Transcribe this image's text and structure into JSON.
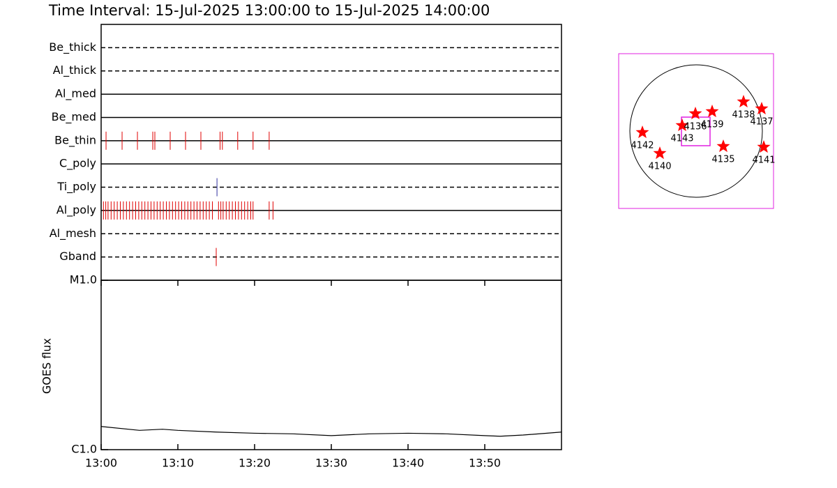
{
  "chart_data": [
    {
      "type": "timeline",
      "title": "Time Interval: 15-Jul-2025 13:00:00 to 15-Jul-2025 14:00:00",
      "xlim": [
        0,
        60
      ],
      "color": "#e00000",
      "categories": [
        {
          "name": "Be_thick",
          "line": "dashed",
          "times": []
        },
        {
          "name": "Al_thick",
          "line": "dashed",
          "times": []
        },
        {
          "name": "Al_med",
          "line": "solid",
          "times": []
        },
        {
          "name": "Be_med",
          "line": "solid",
          "times": []
        },
        {
          "name": "Be_thin",
          "line": "solid",
          "times": [
            0.64,
            2.73,
            4.73,
            6.73,
            7.0,
            9.0,
            11.0,
            13.0,
            15.5,
            15.8,
            17.8,
            19.8,
            21.9
          ]
        },
        {
          "name": "C_poly",
          "line": "solid",
          "times": []
        },
        {
          "name": "Ti_poly",
          "line": "dashed",
          "color": "#3030a0",
          "times": [
            15.1
          ]
        },
        {
          "name": "Al_poly",
          "line": "solid",
          "times": [
            0.3,
            0.6,
            0.9,
            1.3,
            1.7,
            2.1,
            2.5,
            2.9,
            3.3,
            3.7,
            4.1,
            4.5,
            4.9,
            5.3,
            5.7,
            6.1,
            6.5,
            6.9,
            7.3,
            7.7,
            8.1,
            8.5,
            8.9,
            9.3,
            9.7,
            10.1,
            10.5,
            10.9,
            11.3,
            11.7,
            12.1,
            12.5,
            12.9,
            13.3,
            13.7,
            14.1,
            14.5,
            15.3,
            15.6,
            15.9,
            16.3,
            16.7,
            17.1,
            17.5,
            17.9,
            18.3,
            18.7,
            19.1,
            19.5,
            19.8,
            21.9,
            22.4
          ]
        },
        {
          "name": "Al_mesh",
          "line": "dashed",
          "times": []
        },
        {
          "name": "Gband",
          "line": "dashed",
          "times": [
            15.0
          ]
        }
      ]
    },
    {
      "type": "line",
      "ylabel": "GOES flux",
      "log_y": true,
      "color": "#000000",
      "x": [
        0,
        5,
        8,
        10,
        15,
        20,
        25,
        30,
        35,
        40,
        45,
        50,
        52,
        55,
        60
      ],
      "values": [
        1.37e-06,
        1.3e-06,
        1.32e-06,
        1.3e-06,
        1.27e-06,
        1.25e-06,
        1.24e-06,
        1.21e-06,
        1.24e-06,
        1.25e-06,
        1.24e-06,
        1.21e-06,
        1.2e-06,
        1.22e-06,
        1.27e-06
      ],
      "xlim": [
        0,
        60
      ],
      "xticks": [
        {
          "value": 0,
          "label": "13:00"
        },
        {
          "value": 10,
          "label": "13:10"
        },
        {
          "value": 20,
          "label": "13:20"
        },
        {
          "value": 30,
          "label": "13:30"
        },
        {
          "value": 40,
          "label": "13:40"
        },
        {
          "value": 50,
          "label": "13:50"
        }
      ],
      "ylim": [
        1e-06,
        1e-05
      ],
      "yticks": [
        {
          "value": 1e-06,
          "label": "C1.0"
        },
        {
          "value": 1e-05,
          "label": "M1.0"
        }
      ]
    },
    {
      "type": "map",
      "xlim": [
        -1110,
        1110
      ],
      "ylim": [
        -1110,
        1110
      ],
      "radius": 950,
      "color": "#ff0000",
      "frame_color": "#e020e0",
      "fov": {
        "x": [
          -210,
          200
        ],
        "y": [
          -210,
          200
        ]
      },
      "labels": [
        "4142",
        "4140",
        "4143",
        "4136",
        "4139",
        "4138",
        "4137",
        "4135",
        "4141"
      ],
      "x": [
        -770,
        -520,
        -200,
        -10,
        230,
        680,
        940,
        390,
        970
      ],
      "y": [
        -20,
        -320,
        80,
        250,
        280,
        420,
        320,
        -220,
        -230
      ]
    }
  ]
}
